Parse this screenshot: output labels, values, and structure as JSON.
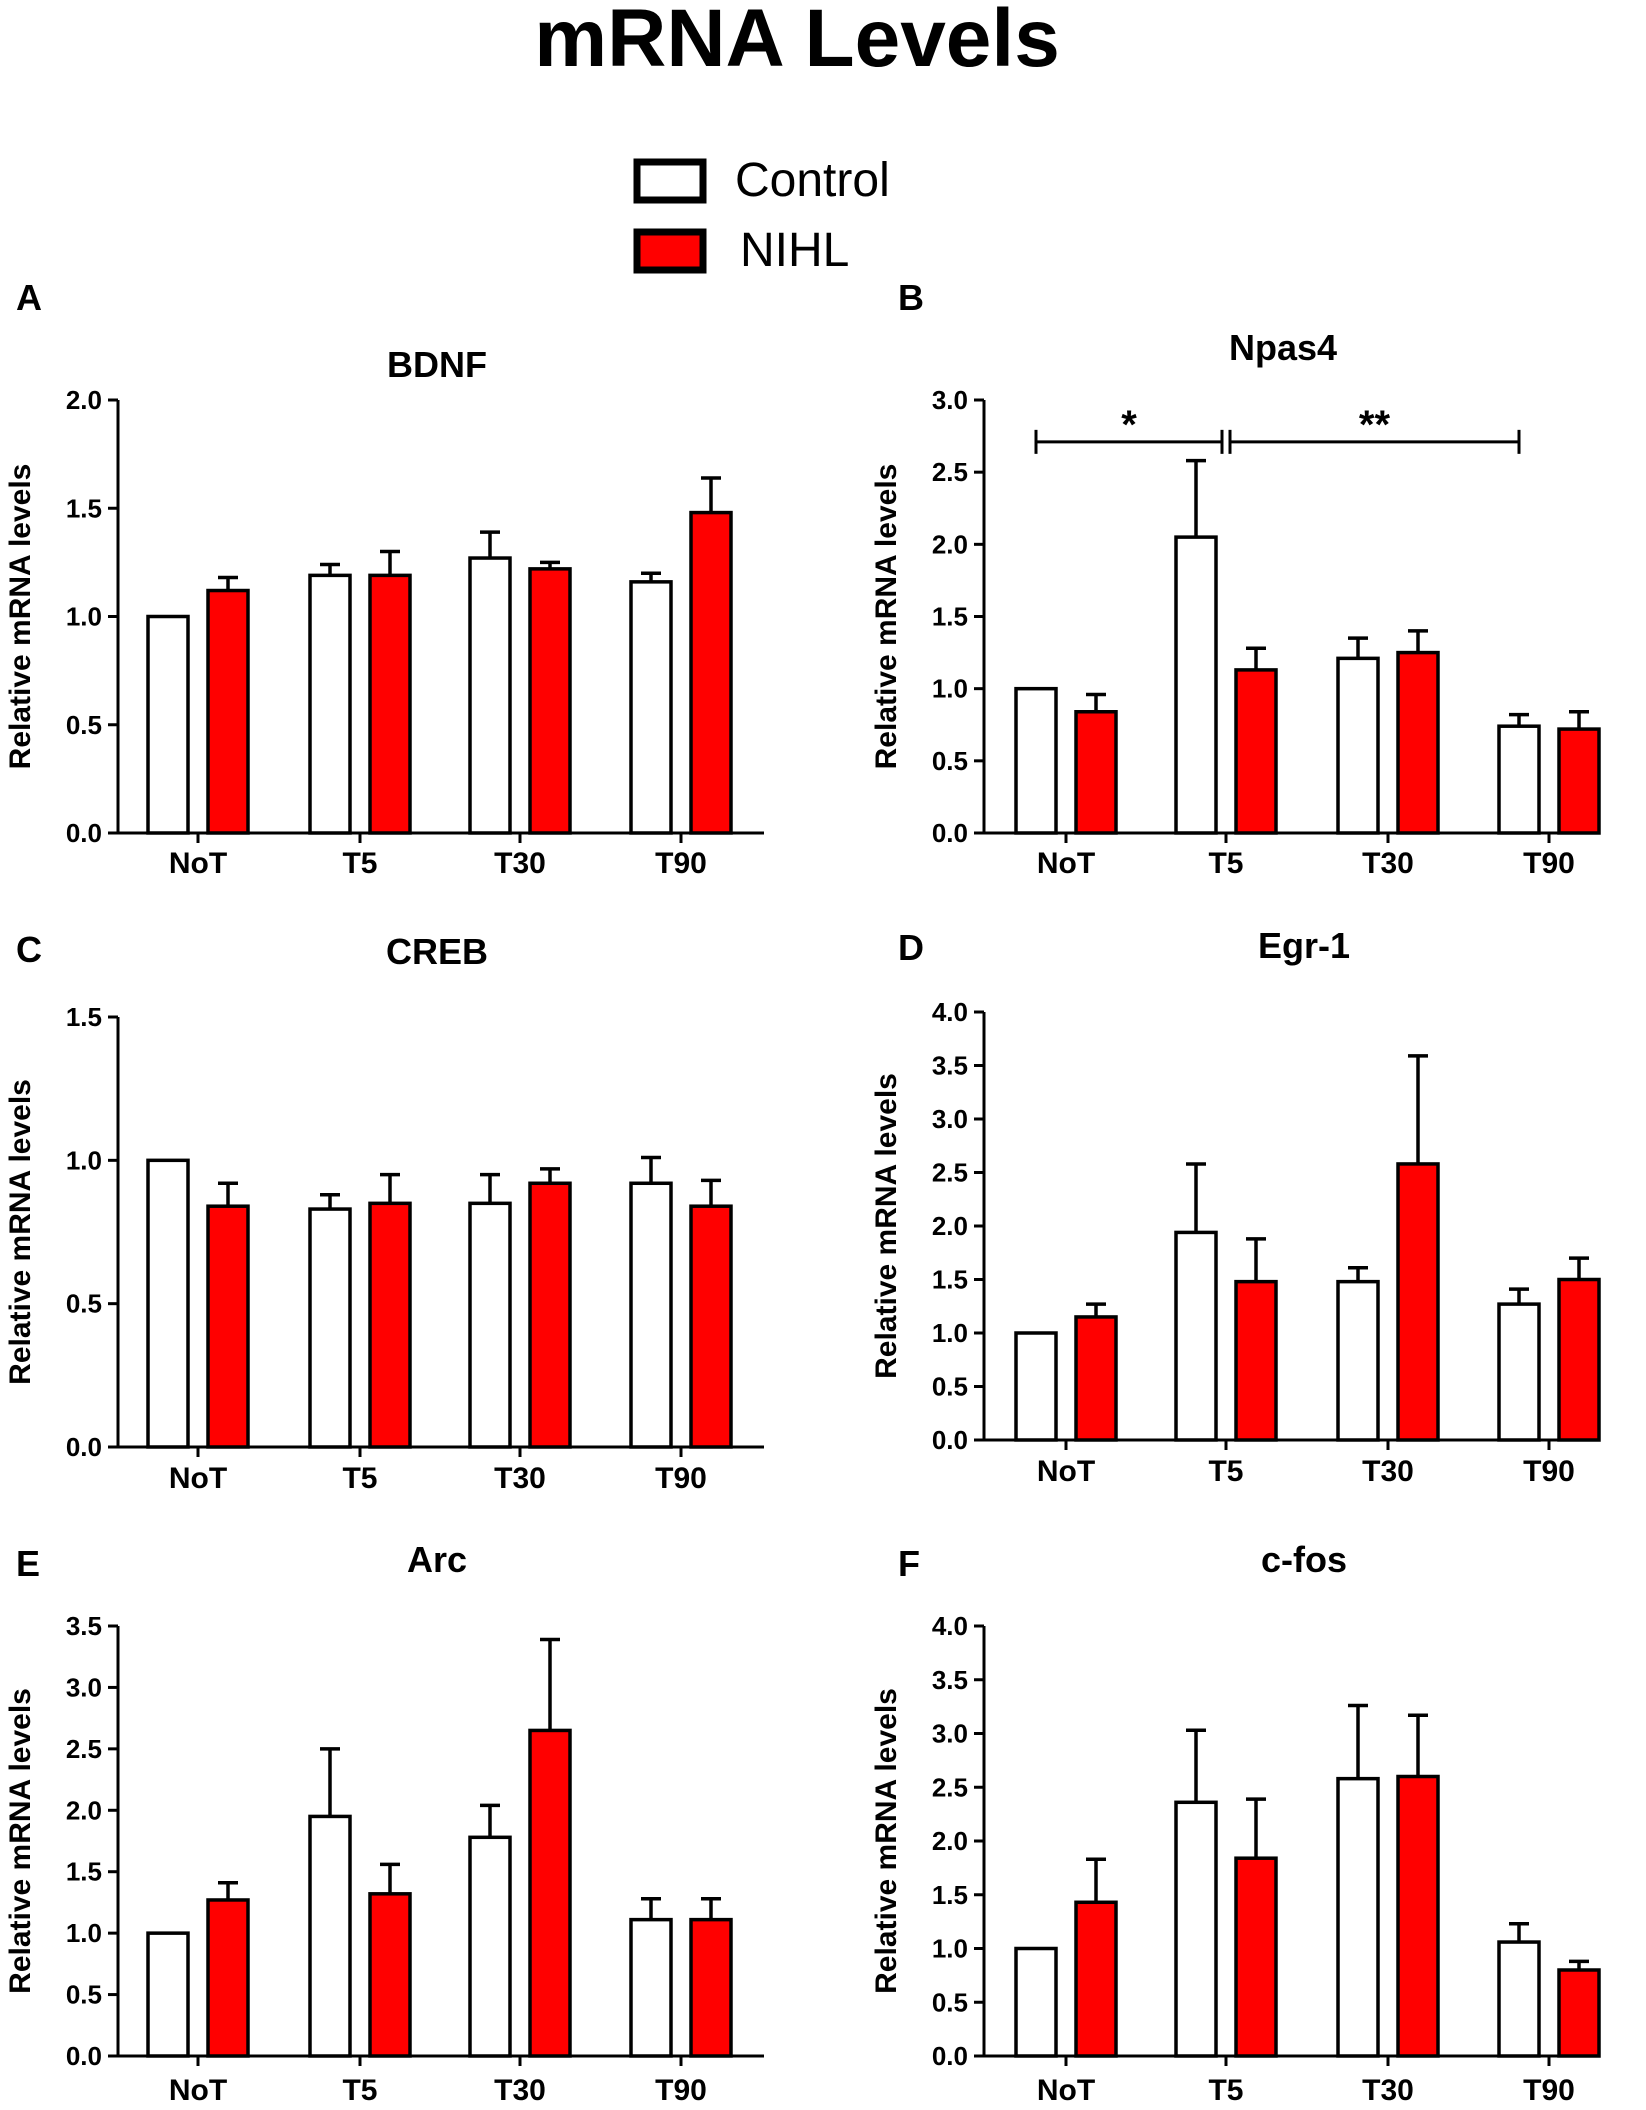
{
  "figure_title": "mRNA Levels",
  "legend": [
    {
      "label": "Control",
      "color": "#ffffff"
    },
    {
      "label": "NIHL",
      "color": "#ff0000"
    }
  ],
  "colors": {
    "control": "#ffffff",
    "nihl": "#ff0000",
    "stroke": "#000000"
  },
  "chart_data": [
    {
      "panel": "A",
      "type": "bar",
      "title": "BDNF",
      "xlabel": "",
      "ylabel": "Relative mRNA levels",
      "categories": [
        "NoT",
        "T5",
        "T30",
        "T90"
      ],
      "ylim": [
        0,
        2.0
      ],
      "yticks": [
        0.0,
        0.5,
        1.0,
        1.5,
        2.0
      ],
      "yticklabels": [
        "0.0",
        "0.5",
        "1.0",
        "1.5",
        "2.0"
      ],
      "series": [
        {
          "name": "Control",
          "values": [
            1.0,
            1.19,
            1.27,
            1.16
          ],
          "errors": [
            0,
            0.05,
            0.12,
            0.04
          ]
        },
        {
          "name": "NIHL",
          "values": [
            1.12,
            1.19,
            1.22,
            1.48
          ],
          "errors": [
            0.06,
            0.11,
            0.03,
            0.16
          ]
        }
      ]
    },
    {
      "panel": "B",
      "type": "bar",
      "title": "Npas4",
      "xlabel": "",
      "ylabel": "Relative mRNA levels",
      "categories": [
        "NoT",
        "T5",
        "T30",
        "T90"
      ],
      "ylim": [
        0,
        3.0
      ],
      "yticks": [
        0.0,
        0.5,
        1.0,
        1.5,
        2.0,
        2.5,
        3.0
      ],
      "yticklabels": [
        "0.0",
        "0.5",
        "1.0",
        "1.5",
        "2.0",
        "2.5",
        "3.0"
      ],
      "series": [
        {
          "name": "Control",
          "values": [
            1.0,
            2.05,
            1.21,
            0.74
          ],
          "errors": [
            0,
            0.53,
            0.14,
            0.08
          ]
        },
        {
          "name": "NIHL",
          "values": [
            0.84,
            1.13,
            1.25,
            0.72
          ],
          "errors": [
            0.12,
            0.15,
            0.15,
            0.12
          ]
        }
      ],
      "annotations": [
        {
          "label": "*",
          "from": 0,
          "to": 1,
          "y": 2.71
        },
        {
          "label": "**",
          "from": 1,
          "to": 3,
          "y": 2.71
        }
      ]
    },
    {
      "panel": "C",
      "type": "bar",
      "title": "CREB",
      "xlabel": "",
      "ylabel": "Relative mRNA levels",
      "categories": [
        "NoT",
        "T5",
        "T30",
        "T90"
      ],
      "ylim": [
        0,
        1.5
      ],
      "yticks": [
        0.0,
        0.5,
        1.0,
        1.5
      ],
      "yticklabels": [
        "0.0",
        "0.5",
        "1.0",
        "1.5"
      ],
      "series": [
        {
          "name": "Control",
          "values": [
            1.0,
            0.83,
            0.85,
            0.92
          ],
          "errors": [
            0,
            0.05,
            0.1,
            0.09
          ]
        },
        {
          "name": "NIHL",
          "values": [
            0.84,
            0.85,
            0.92,
            0.84
          ],
          "errors": [
            0.08,
            0.1,
            0.05,
            0.09
          ]
        }
      ]
    },
    {
      "panel": "D",
      "type": "bar",
      "title": "Egr-1",
      "xlabel": "",
      "ylabel": "Relative mRNA levels",
      "categories": [
        "NoT",
        "T5",
        "T30",
        "T90"
      ],
      "ylim": [
        0,
        4.0
      ],
      "yticks": [
        0.0,
        0.5,
        1.0,
        1.5,
        2.0,
        2.5,
        3.0,
        3.5,
        4.0
      ],
      "yticklabels": [
        "0.0",
        "0.5",
        "1.0",
        "1.5",
        "2.0",
        "2.5",
        "3.0",
        "3.5",
        "4.0"
      ],
      "series": [
        {
          "name": "Control",
          "values": [
            1.0,
            1.94,
            1.48,
            1.27
          ],
          "errors": [
            0,
            0.64,
            0.13,
            0.14
          ]
        },
        {
          "name": "NIHL",
          "values": [
            1.15,
            1.48,
            2.58,
            1.5
          ],
          "errors": [
            0.12,
            0.4,
            1.01,
            0.2
          ]
        }
      ]
    },
    {
      "panel": "E",
      "type": "bar",
      "title": "Arc",
      "xlabel": "",
      "ylabel": "Relative mRNA levels",
      "categories": [
        "NoT",
        "T5",
        "T30",
        "T90"
      ],
      "ylim": [
        0,
        3.5
      ],
      "yticks": [
        0.0,
        0.5,
        1.0,
        1.5,
        2.0,
        2.5,
        3.0,
        3.5
      ],
      "yticklabels": [
        "0.0",
        "0.5",
        "1.0",
        "1.5",
        "2.0",
        "2.5",
        "3.0",
        "3.5"
      ],
      "series": [
        {
          "name": "Control",
          "values": [
            1.0,
            1.95,
            1.78,
            1.11
          ],
          "errors": [
            0,
            0.55,
            0.26,
            0.17
          ]
        },
        {
          "name": "NIHL",
          "values": [
            1.27,
            1.32,
            2.65,
            1.11
          ],
          "errors": [
            0.14,
            0.24,
            0.74,
            0.17
          ]
        }
      ]
    },
    {
      "panel": "F",
      "type": "bar",
      "title": "c-fos",
      "xlabel": "",
      "ylabel": "Relative mRNA levels",
      "categories": [
        "NoT",
        "T5",
        "T30",
        "T90"
      ],
      "ylim": [
        0,
        4.0
      ],
      "yticks": [
        0.0,
        0.5,
        1.0,
        1.5,
        2.0,
        2.5,
        3.0,
        3.5,
        4.0
      ],
      "yticklabels": [
        "0.0",
        "0.5",
        "1.0",
        "1.5",
        "2.0",
        "2.5",
        "3.0",
        "3.5",
        "4.0"
      ],
      "series": [
        {
          "name": "Control",
          "values": [
            1.0,
            2.36,
            2.58,
            1.06
          ],
          "errors": [
            0,
            0.67,
            0.68,
            0.17
          ]
        },
        {
          "name": "NIHL",
          "values": [
            1.43,
            1.84,
            2.6,
            0.8
          ],
          "errors": [
            0.4,
            0.55,
            0.57,
            0.08
          ]
        }
      ]
    }
  ]
}
